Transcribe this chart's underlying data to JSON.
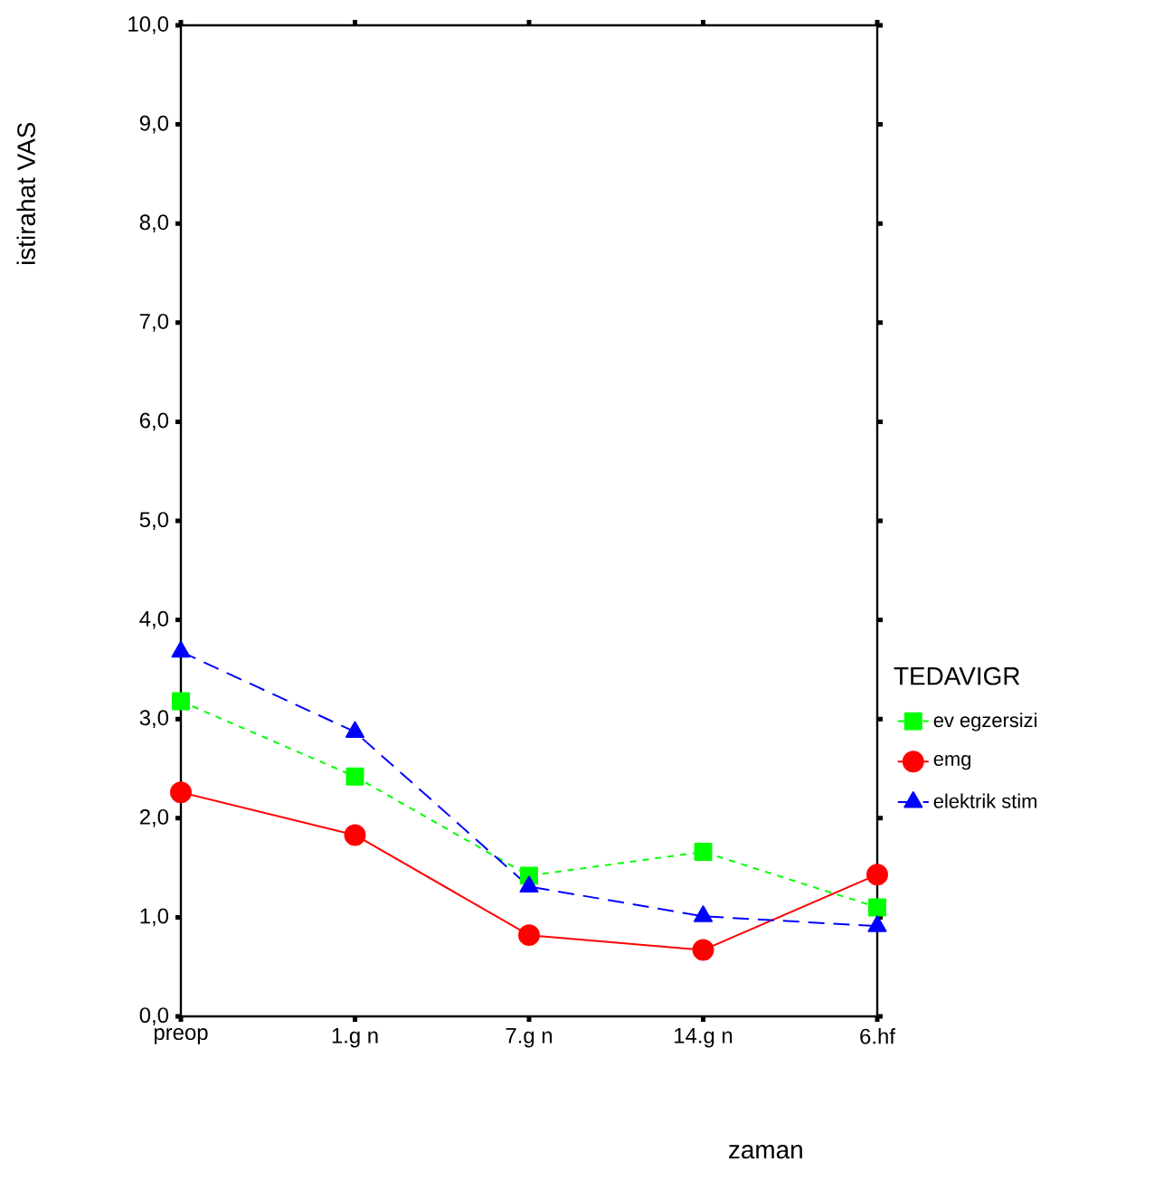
{
  "chart_data": {
    "type": "line",
    "xlabel": "zaman",
    "ylabel": "istirahat VAS",
    "legend_title": "TEDAVIGR",
    "categories": [
      "preop",
      "1.g n",
      "7.g n",
      "14.g n",
      "6.hf"
    ],
    "ylim": [
      0,
      10
    ],
    "yticks": [
      {
        "value": 0,
        "label": "0,0"
      },
      {
        "value": 1,
        "label": "1,0"
      },
      {
        "value": 2,
        "label": "2,0"
      },
      {
        "value": 3,
        "label": "3,0"
      },
      {
        "value": 4,
        "label": "4,0"
      },
      {
        "value": 5,
        "label": "5,0"
      },
      {
        "value": 6,
        "label": "6,0"
      },
      {
        "value": 7,
        "label": "7,0"
      },
      {
        "value": 8,
        "label": "8,0"
      },
      {
        "value": 9,
        "label": "9,0"
      },
      {
        "value": 10,
        "label": "10,0"
      }
    ],
    "legend": "right",
    "grid": false,
    "series": [
      {
        "name": "ev egzersizi",
        "color": "#00ff00",
        "marker": "square",
        "line_style": "dotted",
        "values": [
          3.18,
          2.42,
          1.42,
          1.66,
          1.1
        ]
      },
      {
        "name": "emg",
        "color": "#ff0000",
        "marker": "circle",
        "line_style": "solid",
        "values": [
          2.26,
          1.83,
          0.82,
          0.67,
          1.43
        ]
      },
      {
        "name": "elektrik stim",
        "color": "#0000ff",
        "marker": "triangle",
        "line_style": "dashed",
        "values": [
          3.68,
          2.87,
          1.31,
          1.01,
          0.91
        ]
      }
    ]
  }
}
